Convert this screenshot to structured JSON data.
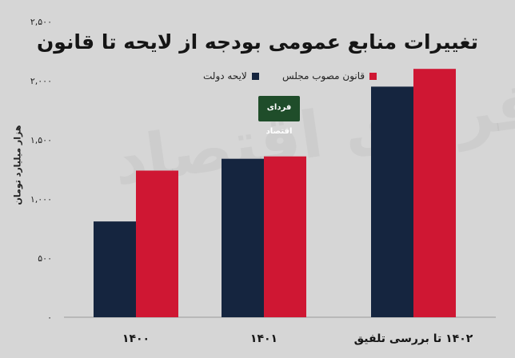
{
  "chart_data": {
    "type": "bar",
    "title": "تغییرات منابع عمومی بودجه از لایحه تا قانون",
    "ylabel": "هزار میلیارد تومان",
    "xlabel": "",
    "ylim": [
      0,
      2500
    ],
    "yticks": [
      "۰",
      "۵۰۰",
      "۱,۰۰۰",
      "۱,۵۰۰",
      "۲,۰۰۰",
      "۲,۵۰۰"
    ],
    "ytick_values": [
      0,
      500,
      1000,
      1500,
      2000,
      2500
    ],
    "categories": [
      "۱۴۰۰",
      "۱۴۰۱",
      "۱۴۰۲ تا بررسی تلفیق"
    ],
    "legend_position": "top-center",
    "grid": false,
    "series": [
      {
        "name": "لایحه دولت",
        "color": "#15253f",
        "values": [
          810,
          1340,
          1950
        ]
      },
      {
        "name": "قانون مصوب مجلس",
        "color": "#cf1733",
        "values": [
          1240,
          1360,
          2100
        ]
      }
    ]
  },
  "logo_text": "فردای اقتصاد",
  "watermark_text": "فردای اقتصاد"
}
